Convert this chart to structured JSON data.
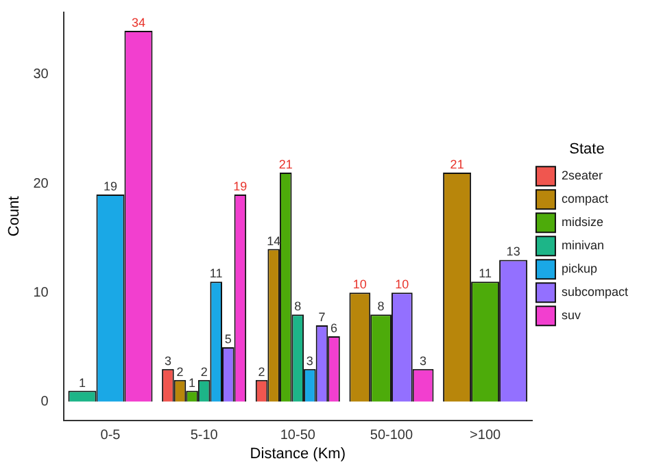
{
  "chart_data": {
    "type": "bar",
    "xlabel": "Distance (Km)",
    "ylabel": "Count",
    "legend_title": "State",
    "legend": "right",
    "grid": false,
    "data_labels": true,
    "categories": [
      "0-5",
      "5-10",
      "10-50",
      "50-100",
      ">100"
    ],
    "ylim": [
      -1.7,
      35.7
    ],
    "yticks": [
      0,
      10,
      20,
      30
    ],
    "series": [
      {
        "name": "2seater",
        "color": "#f0564f",
        "values": [
          null,
          3,
          2,
          null,
          null
        ]
      },
      {
        "name": "compact",
        "color": "#b8860b",
        "values": [
          null,
          2,
          14,
          10,
          21
        ]
      },
      {
        "name": "midsize",
        "color": "#4dab0a",
        "values": [
          null,
          1,
          21,
          8,
          11
        ]
      },
      {
        "name": "minivan",
        "color": "#1db588",
        "values": [
          1,
          2,
          8,
          null,
          null
        ]
      },
      {
        "name": "pickup",
        "color": "#1aa8e6",
        "values": [
          19,
          11,
          3,
          null,
          null
        ]
      },
      {
        "name": "subcompact",
        "color": "#9370ff",
        "values": [
          null,
          5,
          7,
          10,
          13
        ]
      },
      {
        "name": "suv",
        "color": "#f23fcf",
        "values": [
          34,
          19,
          6,
          3,
          null
        ]
      }
    ]
  }
}
